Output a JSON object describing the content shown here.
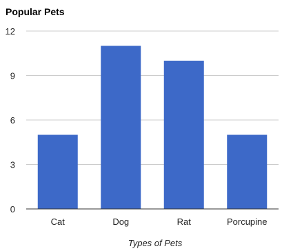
{
  "chart_data": {
    "type": "bar",
    "title": "Popular Pets",
    "xlabel": "Types of Pets",
    "ylabel": "",
    "categories": [
      "Cat",
      "Dog",
      "Rat",
      "Porcupine"
    ],
    "values": [
      5,
      11,
      10,
      5
    ],
    "ylim": [
      0,
      12
    ],
    "yticks": [
      0,
      3,
      6,
      9,
      12
    ],
    "grid": true,
    "legend": "none",
    "bar_color": "#3d69c8"
  }
}
